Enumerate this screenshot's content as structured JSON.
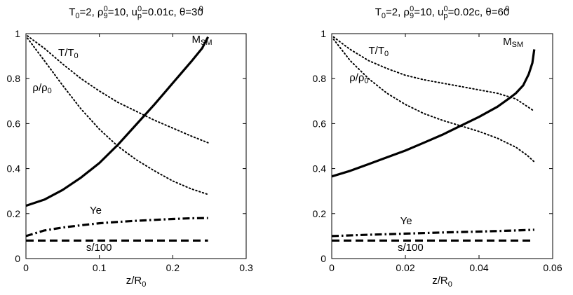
{
  "chart_data": [
    {
      "type": "line",
      "title": "T0=2, ρ9^0=10, up^0=0.01c, θ=30^0",
      "title_parts": {
        "t0": "2",
        "rho": "10",
        "u": "0.01c",
        "theta": "30"
      },
      "xlabel": "z/R0",
      "ylabel": "",
      "xlim": [
        0,
        0.3
      ],
      "ylim": [
        0,
        1
      ],
      "xticks": [
        0,
        0.1,
        0.2,
        0.3
      ],
      "xtick_labels": [
        "0",
        "0.1",
        "0.2",
        "0.3"
      ],
      "yticks": [
        0,
        0.2,
        0.4,
        0.6,
        0.8,
        1
      ],
      "ytick_labels": [
        "0",
        "0.2",
        "0.4",
        "0.6",
        "0.8",
        "1"
      ],
      "grid": false,
      "series": [
        {
          "name": "M_SM",
          "style": "solid",
          "label_main": "M",
          "label_sub": "SM",
          "x": [
            0,
            0.025,
            0.05,
            0.075,
            0.1,
            0.125,
            0.15,
            0.175,
            0.2,
            0.225,
            0.24,
            0.248
          ],
          "y": [
            0.235,
            0.262,
            0.305,
            0.36,
            0.425,
            0.505,
            0.595,
            0.685,
            0.78,
            0.875,
            0.935,
            0.985
          ]
        },
        {
          "name": "T/T0",
          "style": "dotted",
          "label_main": "T/T",
          "label_sub": "0",
          "x": [
            0.002,
            0.025,
            0.05,
            0.075,
            0.1,
            0.125,
            0.15,
            0.175,
            0.2,
            0.225,
            0.248
          ],
          "y": [
            0.99,
            0.935,
            0.865,
            0.8,
            0.745,
            0.695,
            0.655,
            0.615,
            0.58,
            0.545,
            0.515
          ]
        },
        {
          "name": "ρ/ρ0",
          "style": "dotted",
          "label_main": "ρ/ρ",
          "label_sub": "0",
          "x": [
            0.002,
            0.025,
            0.05,
            0.075,
            0.1,
            0.125,
            0.15,
            0.175,
            0.2,
            0.225,
            0.248
          ],
          "y": [
            0.98,
            0.88,
            0.77,
            0.665,
            0.575,
            0.5,
            0.44,
            0.39,
            0.345,
            0.31,
            0.285
          ]
        },
        {
          "name": "Ye",
          "style": "dashdot",
          "label_main": "Ye",
          "label_sub": "",
          "x": [
            0,
            0.025,
            0.05,
            0.075,
            0.1,
            0.125,
            0.15,
            0.175,
            0.2,
            0.225,
            0.248
          ],
          "y": [
            0.1,
            0.125,
            0.138,
            0.148,
            0.157,
            0.163,
            0.168,
            0.172,
            0.176,
            0.179,
            0.18
          ]
        },
        {
          "name": "s/100",
          "style": "dashed",
          "label_main": "s/100",
          "label_sub": "",
          "x": [
            0,
            0.248
          ],
          "y": [
            0.08,
            0.08
          ]
        }
      ],
      "annotation_anchors": [
        {
          "series": "M_SM",
          "x": 0.226,
          "y": 0.96
        },
        {
          "series": "T/T0",
          "x": 0.044,
          "y": 0.9
        },
        {
          "series": "ρ/ρ0",
          "x": 0.009,
          "y": 0.745
        },
        {
          "series": "Ye",
          "x": 0.087,
          "y": 0.2
        },
        {
          "series": "s/100",
          "x": 0.082,
          "y": 0.035
        }
      ]
    },
    {
      "type": "line",
      "title": "T0=2, ρ9^0=10, up^0=0.02c, θ=60^0",
      "title_parts": {
        "t0": "2",
        "rho": "10",
        "u": "0.02c",
        "theta": "60"
      },
      "xlabel": "z/R0",
      "ylabel": "",
      "xlim": [
        0,
        0.06
      ],
      "ylim": [
        0,
        1
      ],
      "xticks": [
        0,
        0.02,
        0.04,
        0.06
      ],
      "xtick_labels": [
        "0",
        "0.02",
        "0.04",
        "0.06"
      ],
      "yticks": [
        0,
        0.2,
        0.4,
        0.6,
        0.8,
        1
      ],
      "ytick_labels": [
        "0",
        "0.2",
        "0.4",
        "0.6",
        "0.8",
        "1"
      ],
      "grid": false,
      "series": [
        {
          "name": "M_SM",
          "style": "solid",
          "label_main": "M",
          "label_sub": "SM",
          "x": [
            0,
            0.005,
            0.01,
            0.015,
            0.02,
            0.025,
            0.03,
            0.035,
            0.04,
            0.045,
            0.048,
            0.05,
            0.052,
            0.0535,
            0.0545,
            0.055
          ],
          "y": [
            0.365,
            0.39,
            0.42,
            0.45,
            0.48,
            0.515,
            0.55,
            0.59,
            0.63,
            0.675,
            0.71,
            0.735,
            0.77,
            0.82,
            0.87,
            0.93
          ]
        },
        {
          "name": "T/T0",
          "style": "dotted",
          "label_main": "T/T",
          "label_sub": "0",
          "x": [
            0.0005,
            0.005,
            0.01,
            0.015,
            0.02,
            0.025,
            0.03,
            0.035,
            0.04,
            0.045,
            0.05,
            0.055
          ],
          "y": [
            0.985,
            0.93,
            0.88,
            0.845,
            0.815,
            0.795,
            0.78,
            0.765,
            0.75,
            0.735,
            0.71,
            0.655
          ]
        },
        {
          "name": "ρ/ρ0",
          "style": "dotted",
          "label_main": "ρ/ρ",
          "label_sub": "0",
          "x": [
            0.0005,
            0.005,
            0.01,
            0.015,
            0.02,
            0.025,
            0.03,
            0.035,
            0.04,
            0.045,
            0.05,
            0.053,
            0.055
          ],
          "y": [
            0.975,
            0.88,
            0.8,
            0.735,
            0.685,
            0.645,
            0.615,
            0.59,
            0.565,
            0.535,
            0.495,
            0.46,
            0.43
          ]
        },
        {
          "name": "Ye",
          "style": "dashdot",
          "label_main": "Ye",
          "label_sub": "",
          "x": [
            0,
            0.01,
            0.02,
            0.03,
            0.04,
            0.05,
            0.055
          ],
          "y": [
            0.1,
            0.106,
            0.111,
            0.116,
            0.12,
            0.125,
            0.128
          ]
        },
        {
          "name": "s/100",
          "style": "dashed",
          "label_main": "s/100",
          "label_sub": "",
          "x": [
            0,
            0.055
          ],
          "y": [
            0.08,
            0.08
          ]
        }
      ],
      "annotation_anchors": [
        {
          "series": "M_SM",
          "x": 0.0465,
          "y": 0.95
        },
        {
          "series": "T/T0",
          "x": 0.01,
          "y": 0.91
        },
        {
          "series": "ρ/ρ0",
          "x": 0.0048,
          "y": 0.79
        },
        {
          "series": "Ye",
          "x": 0.0186,
          "y": 0.152
        },
        {
          "series": "s/100",
          "x": 0.0179,
          "y": 0.035
        }
      ]
    }
  ]
}
